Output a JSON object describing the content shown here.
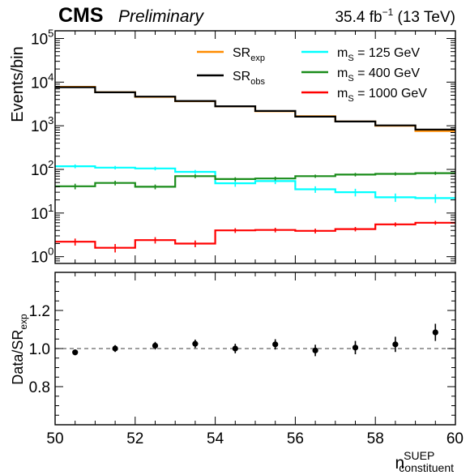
{
  "header": {
    "experiment": "CMS",
    "status": "Preliminary",
    "luminosity": "35.4",
    "lumi_unit": "fb",
    "lumi_exp": "−1",
    "energy": "(13 TeV)"
  },
  "chart_data": [
    {
      "type": "line",
      "panel": "main",
      "ylabel": "Events/bin",
      "yscale": "log",
      "ylim": [
        0.7,
        150000
      ],
      "xlim": [
        50,
        60
      ],
      "grid": false,
      "legend_placement": "top-right",
      "y_tick_labels": [
        {
          "value": 1,
          "base": "10",
          "exp": "0"
        },
        {
          "value": 10,
          "base": "10",
          "exp": "1"
        },
        {
          "value": 100,
          "base": "10",
          "exp": "2"
        },
        {
          "value": 1000,
          "base": "10",
          "exp": "3"
        },
        {
          "value": 10000,
          "base": "10",
          "exp": "4"
        },
        {
          "value": 100000,
          "base": "10",
          "exp": "5"
        }
      ],
      "bin_edges": [
        50,
        51,
        52,
        53,
        54,
        55,
        56,
        57,
        58,
        59,
        60
      ],
      "series": [
        {
          "name": "SR",
          "sub": "exp",
          "color": "#ff8c00",
          "values": [
            7800,
            5900,
            4600,
            3650,
            2800,
            2150,
            1650,
            1250,
            1000,
            760
          ],
          "errors": []
        },
        {
          "name": "SR",
          "sub": "obs",
          "color": "#000000",
          "values": [
            7650,
            5850,
            4650,
            3700,
            2800,
            2180,
            1620,
            1250,
            1020,
            820
          ],
          "errors": []
        },
        {
          "name": "m",
          "sub": "S",
          "suffix": " = 125 GeV",
          "color": "#00ffff",
          "values": [
            118,
            110,
            105,
            88,
            48,
            54,
            35,
            30,
            23,
            22
          ],
          "errors": [
            12,
            10,
            10,
            9,
            8,
            8,
            6,
            6,
            5,
            5
          ]
        },
        {
          "name": "m",
          "sub": "S",
          "suffix": " = 400 GeV",
          "color": "#1a8c1a",
          "values": [
            41,
            49,
            40,
            70,
            60,
            62,
            70,
            76,
            79,
            82
          ],
          "errors": [
            6,
            6,
            5,
            7,
            6,
            6,
            6,
            7,
            7,
            7
          ]
        },
        {
          "name": "m",
          "sub": "S",
          "suffix": " = 1000 GeV",
          "color": "#ff0000",
          "values": [
            2.2,
            1.6,
            2.4,
            2.0,
            4.0,
            4.1,
            3.9,
            4.3,
            5.5,
            6.0
          ],
          "errors": [
            0.4,
            0.35,
            0.4,
            0.35,
            0.5,
            0.5,
            0.5,
            0.5,
            0.6,
            0.6
          ]
        }
      ]
    },
    {
      "type": "scatter",
      "panel": "ratio",
      "ylabel": "Data/SR",
      "ylabel_sub": "exp",
      "xlabel": "n",
      "xlabel_sup": "SUEP",
      "xlabel_sub": "constituent",
      "xlim": [
        50,
        60
      ],
      "ylim": [
        0.6,
        1.4
      ],
      "reference_line": 1.0,
      "x_ticks": [
        "50",
        "52",
        "54",
        "56",
        "58",
        "60"
      ],
      "y_ticks": [
        "0.8",
        "1.0",
        "1.2"
      ],
      "x": [
        50.5,
        51.5,
        52.5,
        53.5,
        54.5,
        55.5,
        56.5,
        57.5,
        58.5,
        59.5
      ],
      "y": [
        0.98,
        1.0,
        1.015,
        1.025,
        1.0,
        1.022,
        0.99,
        1.005,
        1.022,
        1.085
      ],
      "yerr": [
        0.015,
        0.018,
        0.02,
        0.022,
        0.025,
        0.027,
        0.03,
        0.035,
        0.04,
        0.045
      ]
    }
  ]
}
